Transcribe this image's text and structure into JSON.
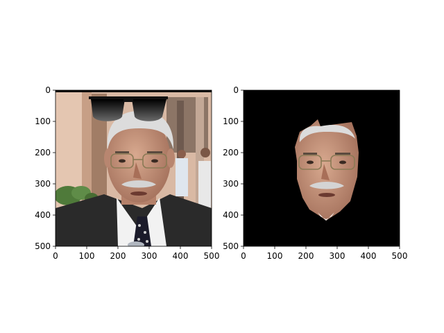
{
  "chart_data": [
    {
      "type": "image",
      "title": "",
      "xlabel": "",
      "ylabel": "",
      "xlim": [
        0,
        500
      ],
      "ylim": [
        500,
        0
      ],
      "xticks": [
        0,
        100,
        200,
        300,
        400,
        500
      ],
      "yticks": [
        0,
        100,
        200,
        300,
        400,
        500
      ],
      "xtick_labels": [
        "0",
        "100",
        "200",
        "300",
        "400",
        "500"
      ],
      "ytick_labels": [
        "0",
        "100",
        "200",
        "300",
        "400",
        "500"
      ],
      "content": "photo-with-sunglasses"
    },
    {
      "type": "image",
      "title": "",
      "xlabel": "",
      "ylabel": "",
      "xlim": [
        0,
        500
      ],
      "ylim": [
        500,
        0
      ],
      "xticks": [
        0,
        100,
        200,
        300,
        400,
        500
      ],
      "yticks": [
        0,
        100,
        200,
        300,
        400,
        500
      ],
      "xtick_labels": [
        "0",
        "100",
        "200",
        "300",
        "400",
        "500"
      ],
      "ytick_labels": [
        "0",
        "100",
        "200",
        "300",
        "400",
        "500"
      ],
      "content": "face-mask"
    }
  ],
  "colors": {
    "mask_background": "#000000",
    "skin": "#c99a82",
    "hair": "#dcdcdc",
    "suit": "#2a2a2a",
    "shirt": "#f2f2f2",
    "wall": "#d9b9a4"
  }
}
